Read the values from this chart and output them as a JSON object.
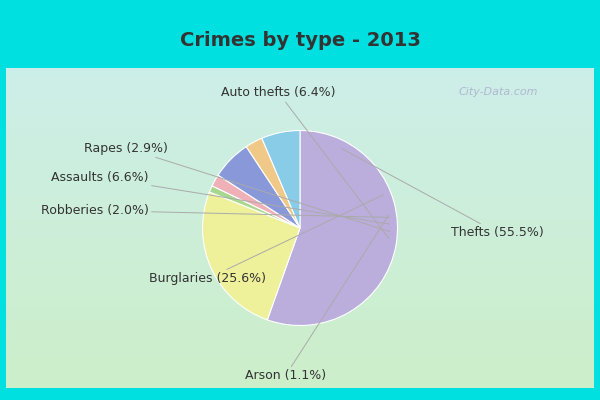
{
  "title": "Crimes by type - 2013",
  "slices": [
    {
      "label": "Thefts (55.5%)",
      "value": 55.5,
      "color": "#bbaedd"
    },
    {
      "label": "Burglaries (25.6%)",
      "value": 25.6,
      "color": "#eef09a"
    },
    {
      "label": "Arson (1.1%)",
      "value": 1.1,
      "color": "#a8d890"
    },
    {
      "label": "Robberies (2.0%)",
      "value": 2.0,
      "color": "#f0b0b8"
    },
    {
      "label": "Assaults (6.6%)",
      "value": 6.6,
      "color": "#8898d8"
    },
    {
      "label": "Rapes (2.9%)",
      "value": 2.9,
      "color": "#f0c888"
    },
    {
      "label": "Auto thefts (6.4%)",
      "value": 6.4,
      "color": "#88cce8"
    }
  ],
  "bg_color": "#00e0e0",
  "inner_bg_top": "#d8eee8",
  "inner_bg_bottom": "#d0eed8",
  "title_color": "#333333",
  "title_fontsize": 14,
  "label_fontsize": 9,
  "watermark": "City-Data.com"
}
